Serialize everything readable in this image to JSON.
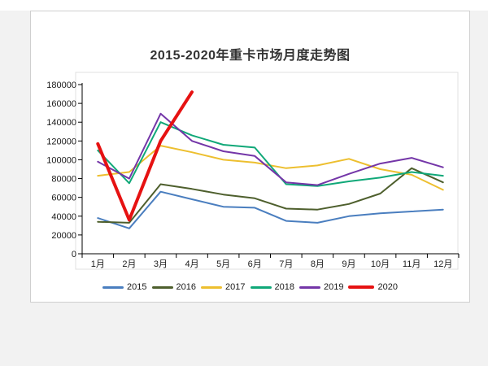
{
  "chart": {
    "title": "2015-2020年重卡市场月度走势图"
  },
  "chart_data": {
    "type": "line",
    "title": "2015-2020年重卡市场月度走势图",
    "categories": [
      "1月",
      "2月",
      "3月",
      "4月",
      "5月",
      "6月",
      "7月",
      "8月",
      "9月",
      "10月",
      "11月",
      "12月"
    ],
    "ylim": [
      0,
      180000
    ],
    "y_tick_step": 20000,
    "y_ticks": [
      0,
      20000,
      40000,
      60000,
      80000,
      100000,
      120000,
      140000,
      160000,
      180000
    ],
    "grid": false,
    "legend_position": "bottom",
    "series": [
      {
        "name": "2015",
        "color": "#4a7ebf",
        "line_width": 2,
        "values": [
          38000,
          27000,
          66000,
          58000,
          50000,
          49000,
          35000,
          33000,
          40000,
          43000,
          45000,
          47000
        ]
      },
      {
        "name": "2016",
        "color": "#4e5f2d",
        "line_width": 2,
        "values": [
          34000,
          33000,
          74000,
          69000,
          63000,
          59000,
          48000,
          47000,
          53000,
          64000,
          91000,
          76000
        ]
      },
      {
        "name": "2017",
        "color": "#edbf2f",
        "line_width": 2,
        "values": [
          83000,
          87000,
          115000,
          108000,
          100000,
          97000,
          91000,
          94000,
          101000,
          90000,
          84000,
          68000
        ]
      },
      {
        "name": "2018",
        "color": "#10a878",
        "line_width": 2,
        "values": [
          110000,
          75000,
          140000,
          126000,
          116000,
          113000,
          74000,
          72000,
          77000,
          81000,
          87000,
          83000
        ]
      },
      {
        "name": "2019",
        "color": "#7436a8",
        "line_width": 2,
        "values": [
          98000,
          80000,
          149000,
          120000,
          109000,
          104000,
          76000,
          73000,
          85000,
          96000,
          102000,
          92000
        ]
      },
      {
        "name": "2020",
        "color": "#e61212",
        "line_width": 4,
        "values": [
          117000,
          36000,
          120000,
          172000,
          null,
          null,
          null,
          null,
          null,
          null,
          null,
          null
        ]
      }
    ]
  }
}
